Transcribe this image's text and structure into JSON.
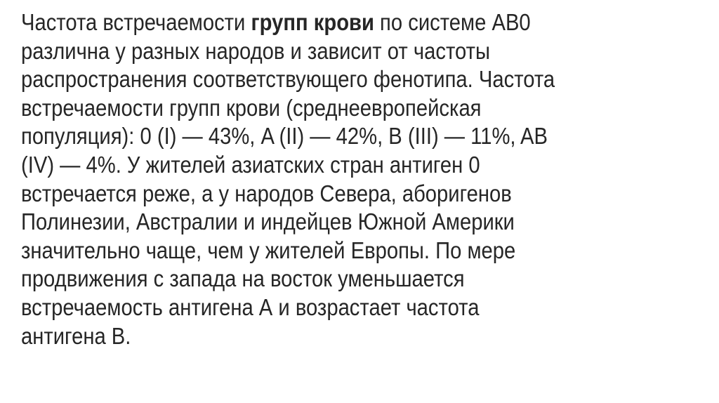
{
  "paragraph": {
    "line1_before": "Частота встречаемости ",
    "line1_bold": "групп крови",
    "line1_after": " по системе АВ0",
    "lines": [
      "различна у разных народов и зависит от частоты",
      "распространения соответствующего фенотипа. Частота",
      "встречаемости групп крови (среднеевропейская",
      "популяция): 0 (I) — 43%, A (II) — 42%, B (III) — 11%, AB",
      "(IV) — 4%. У жителей азиатских стран антиген 0",
      "встречается реже, а у народов Севера, аборигенов",
      "Полинезии, Австралии и индейцев Южной Америки",
      "значительно чаще, чем у жителей Европы. По мере",
      "продвижения с запада на восток уменьшается",
      "встречаемость антигена А и возрастает частота",
      "антигена В."
    ]
  }
}
